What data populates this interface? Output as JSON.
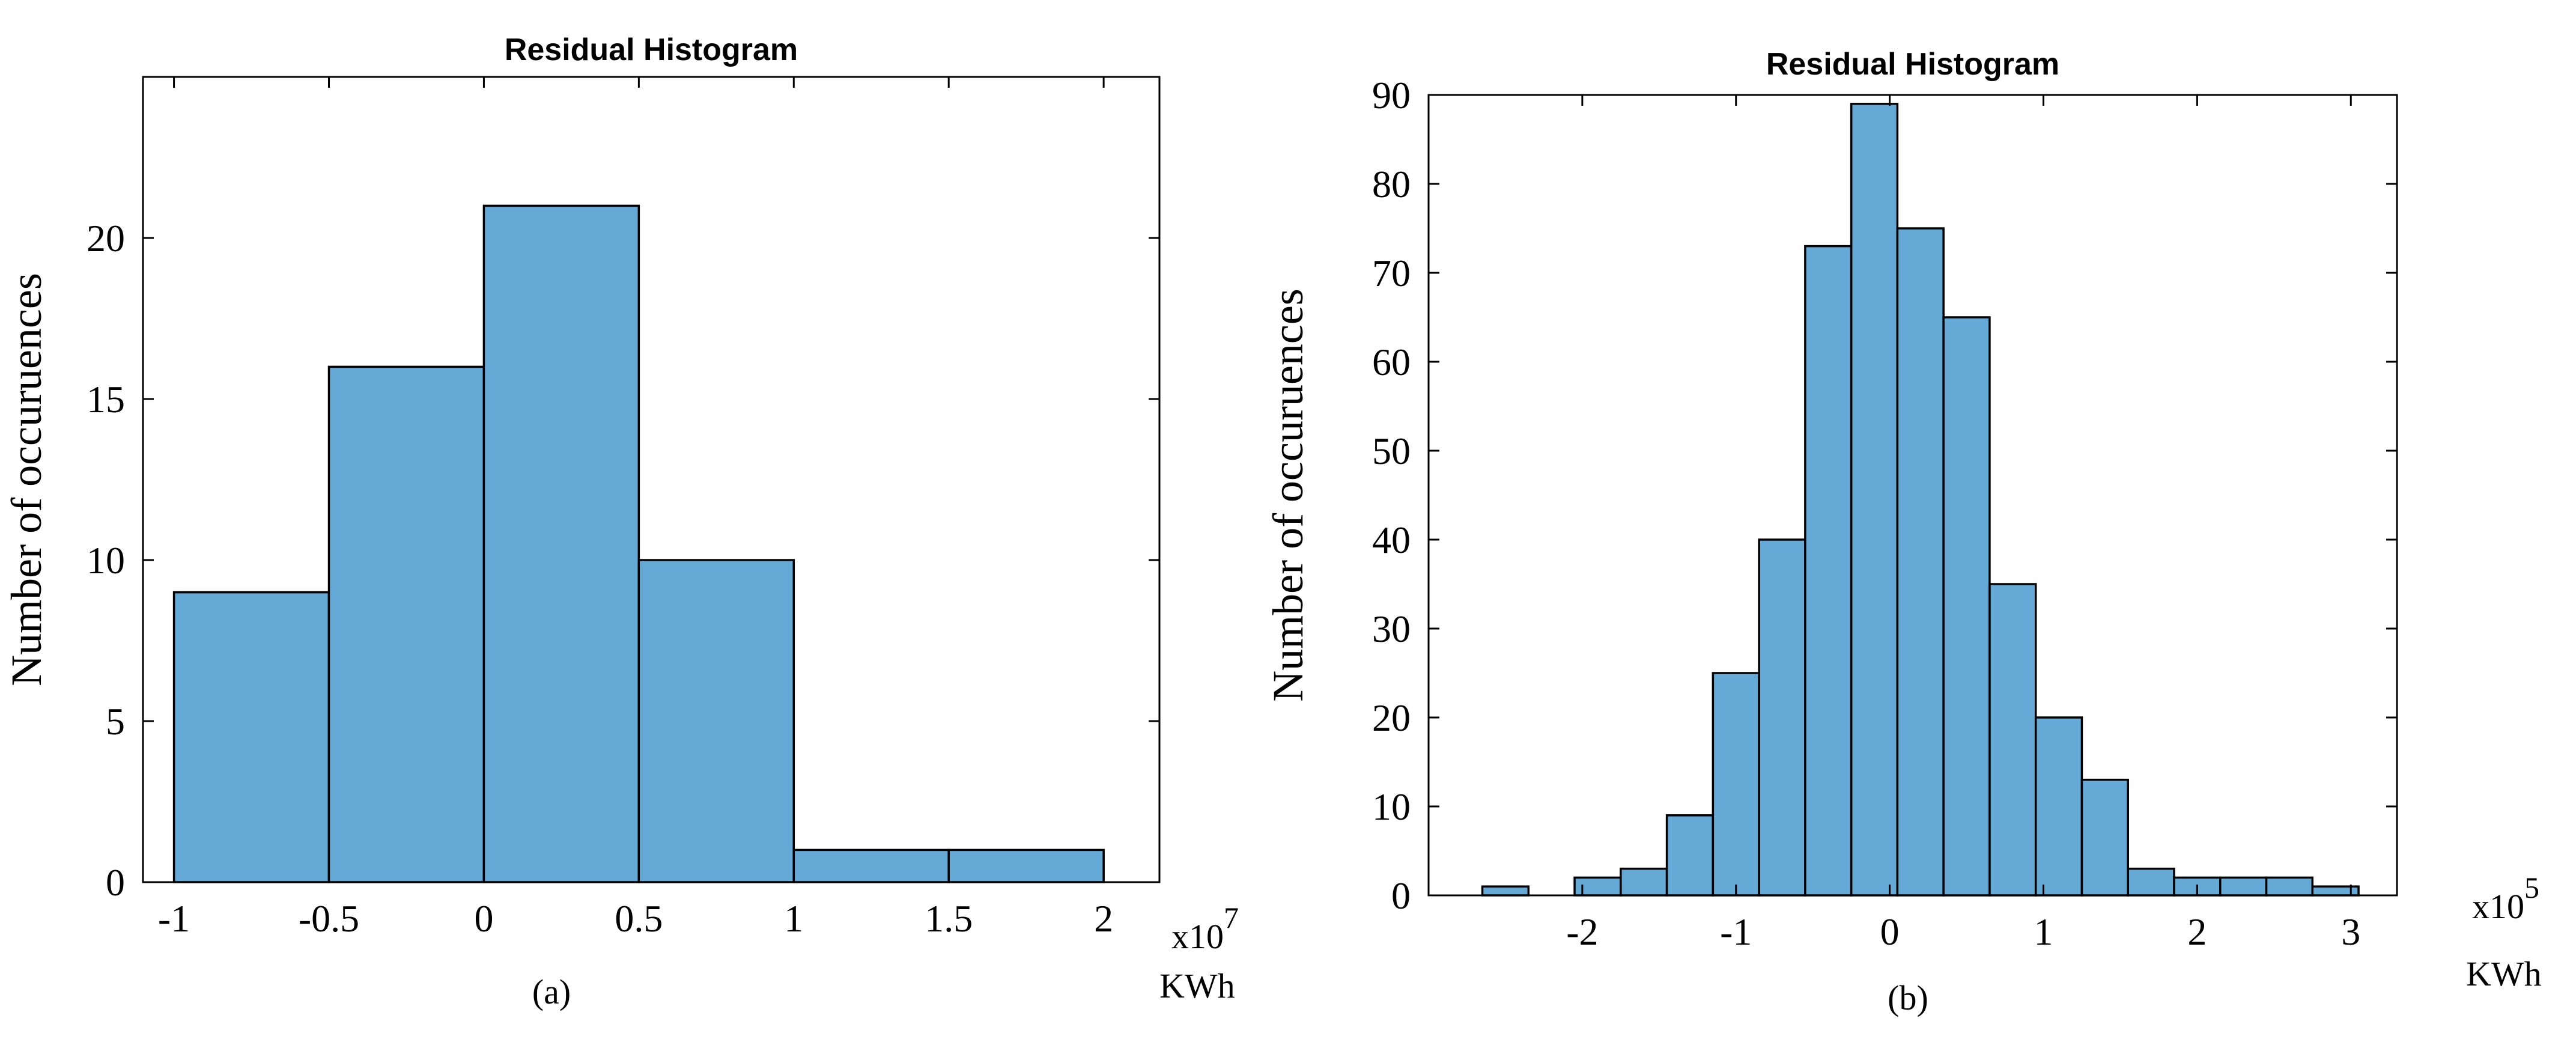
{
  "chart_data": [
    {
      "type": "histogram",
      "title": "Residual Histogram",
      "ylabel": "Number of occuruences",
      "xlabel": "KWh",
      "x_multiplier": "x10",
      "x_exponent": "7",
      "caption": "(a)",
      "bin_edges": [
        -1,
        -0.5,
        0,
        0.5,
        1,
        1.5,
        2
      ],
      "counts": [
        9,
        16,
        21,
        10,
        1,
        1
      ],
      "xlim": [
        -1.1,
        2.18
      ],
      "ylim": [
        0,
        25
      ],
      "xticks": [
        -1,
        -0.5,
        0,
        0.5,
        1,
        1.5,
        2
      ],
      "xtick_labels": [
        "-1",
        "-0.5",
        "0",
        "0.5",
        "1",
        "1.5",
        "2"
      ],
      "yticks": [
        0,
        5,
        10,
        15,
        20
      ],
      "ytick_labels": [
        "0",
        "5",
        "10",
        "15",
        "20"
      ],
      "bar_color": "#65a9d6"
    },
    {
      "type": "histogram",
      "title": "Residual Histogram",
      "ylabel": "Number of occuruences",
      "xlabel": "KWh",
      "x_multiplier": "x10",
      "x_exponent": "5",
      "caption": "(b)",
      "bin_edges": [
        -2.65,
        -2.35,
        -2.05,
        -1.75,
        -1.45,
        -1.15,
        -0.85,
        -0.55,
        -0.25,
        0.05,
        0.35,
        0.65,
        0.95,
        1.25,
        1.55,
        1.85,
        2.15,
        2.45,
        2.75,
        3.05
      ],
      "counts": [
        1,
        0,
        2,
        3,
        9,
        25,
        40,
        73,
        89,
        75,
        65,
        35,
        20,
        13,
        3,
        2,
        2,
        2,
        1
      ],
      "xlim": [
        -3,
        3.3
      ],
      "ylim": [
        0,
        90
      ],
      "xticks": [
        -2,
        -1,
        0,
        1,
        2,
        3
      ],
      "xtick_labels": [
        "-2",
        "-1",
        "0",
        "1",
        "2",
        "3"
      ],
      "yticks": [
        0,
        10,
        20,
        30,
        40,
        50,
        60,
        70,
        80,
        90
      ],
      "ytick_labels": [
        "0",
        "10",
        "20",
        "30",
        "40",
        "50",
        "60",
        "70",
        "80",
        "90"
      ],
      "bar_color": "#65a9d6"
    }
  ]
}
